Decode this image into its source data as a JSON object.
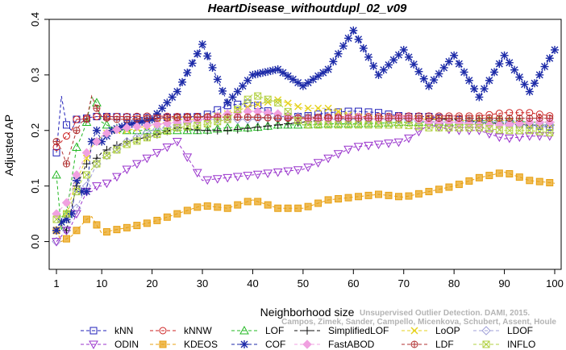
{
  "chart_data": {
    "type": "line",
    "title": "HeartDisease_withoutdupl_02_v09",
    "xlabel": "Neighborhood size",
    "ylabel": "Adjusted AP",
    "xlim": [
      1,
      100
    ],
    "ylim": [
      -0.05,
      0.4
    ],
    "x_ticks": [
      1,
      10,
      20,
      30,
      40,
      50,
      60,
      70,
      80,
      90,
      100
    ],
    "y_ticks": [
      0.0,
      0.1,
      0.2,
      0.3,
      0.4
    ],
    "x_tick_labels": [
      "1",
      "10",
      "20",
      "30",
      "40",
      "50",
      "60",
      "70",
      "80",
      "90",
      "100"
    ],
    "y_tick_labels": [
      "0.0",
      "0.1",
      "0.2",
      "0.3",
      "0.4"
    ],
    "grid": false,
    "legend_position": "bottom",
    "watermark": [
      "Unsupervised Outlier Detection. DAMI, 2015.",
      "Campos, Zimek, Sander, Campello, Micenkova, Schubert, Assent, Houle"
    ],
    "x_knots": [
      1,
      2,
      3,
      4,
      5,
      6,
      7,
      8,
      9,
      10,
      12,
      15,
      20,
      25,
      30,
      35,
      40,
      45,
      50,
      55,
      60,
      65,
      70,
      75,
      80,
      85,
      90,
      95,
      100
    ],
    "series": [
      {
        "name": "kNN",
        "color": "#1f1fb8",
        "marker": "square",
        "values": [
          0.16,
          0.262,
          0.21,
          0.2,
          0.22,
          0.22,
          0.222,
          0.224,
          0.225,
          0.225,
          0.225,
          0.224,
          0.223,
          0.224,
          0.225,
          0.245,
          0.25,
          0.225,
          0.225,
          0.232,
          0.235,
          0.232,
          0.225,
          0.225,
          0.22,
          0.215,
          0.215,
          0.21,
          0.205
        ]
      },
      {
        "name": "kNNW",
        "color": "#cc2020",
        "marker": "circle",
        "values": [
          0.17,
          0.18,
          0.19,
          0.2,
          0.22,
          0.22,
          0.222,
          0.223,
          0.225,
          0.225,
          0.225,
          0.225,
          0.226,
          0.225,
          0.225,
          0.224,
          0.224,
          0.222,
          0.224,
          0.224,
          0.225,
          0.225,
          0.226,
          0.226,
          0.226,
          0.226,
          0.232,
          0.232,
          0.225
        ]
      },
      {
        "name": "LOF",
        "color": "#22b822",
        "marker": "triangle",
        "values": [
          0.12,
          0.02,
          0.05,
          0.11,
          0.17,
          0.19,
          0.215,
          0.26,
          0.25,
          0.215,
          0.205,
          0.2,
          0.2,
          0.2,
          0.2,
          0.205,
          0.205,
          0.21,
          0.21,
          0.212,
          0.212,
          0.213,
          0.215,
          0.215,
          0.215,
          0.218,
          0.218,
          0.215,
          0.215
        ]
      },
      {
        "name": "SimplifiedLOF",
        "color": "#111111",
        "marker": "plus",
        "values": [
          0.02,
          0.03,
          0.02,
          0.06,
          0.1,
          0.12,
          0.14,
          0.14,
          0.15,
          0.16,
          0.17,
          0.18,
          0.19,
          0.205,
          0.2,
          0.2,
          0.205,
          0.21,
          0.215,
          0.22,
          0.22,
          0.22,
          0.22,
          0.22,
          0.22,
          0.215,
          0.212,
          0.21,
          0.21
        ]
      },
      {
        "name": "LoOP",
        "color": "#e6d21e",
        "marker": "x",
        "values": [
          0.02,
          0.03,
          0.05,
          0.08,
          0.11,
          0.13,
          0.15,
          0.17,
          0.18,
          0.19,
          0.2,
          0.2,
          0.21,
          0.22,
          0.22,
          0.23,
          0.245,
          0.255,
          0.24,
          0.24,
          0.225,
          0.22,
          0.22,
          0.22,
          0.218,
          0.218,
          0.218,
          0.21,
          0.21
        ]
      },
      {
        "name": "LDOF",
        "color": "#a0a0d8",
        "marker": "diamond",
        "values": [
          0.0,
          0.01,
          0.02,
          0.04,
          0.06,
          0.08,
          0.1,
          0.12,
          0.14,
          0.15,
          0.16,
          0.18,
          0.2,
          0.21,
          0.22,
          0.22,
          0.22,
          0.225,
          0.225,
          0.22,
          0.22,
          0.22,
          0.22,
          0.215,
          0.215,
          0.215,
          0.215,
          0.21,
          0.21
        ]
      },
      {
        "name": "ODIN",
        "color": "#9933cc",
        "marker": "triangle-down",
        "values": [
          0.0,
          0.01,
          0.02,
          0.03,
          0.05,
          0.07,
          0.09,
          0.09,
          0.1,
          0.1,
          0.11,
          0.13,
          0.155,
          0.18,
          0.11,
          0.115,
          0.12,
          0.125,
          0.13,
          0.15,
          0.17,
          0.175,
          0.18,
          0.21,
          0.2,
          0.2,
          0.185,
          0.19,
          0.19
        ]
      },
      {
        "name": "KDEOS",
        "color": "#e8a010",
        "marker": "square-x",
        "values": [
          0.02,
          0.0,
          0.005,
          0.01,
          0.02,
          0.03,
          0.04,
          0.045,
          0.03,
          0.015,
          0.02,
          0.025,
          0.035,
          0.05,
          0.065,
          0.06,
          0.075,
          0.06,
          0.06,
          0.075,
          0.08,
          0.085,
          0.08,
          0.09,
          0.1,
          0.115,
          0.125,
          0.11,
          0.105
        ]
      },
      {
        "name": "COF",
        "color": "#1c2aa8",
        "marker": "asterisk",
        "values": [
          0.02,
          0.035,
          0.04,
          0.05,
          0.11,
          0.09,
          0.09,
          0.18,
          0.2,
          0.18,
          0.2,
          0.21,
          0.22,
          0.27,
          0.355,
          0.25,
          0.3,
          0.31,
          0.28,
          0.31,
          0.38,
          0.3,
          0.345,
          0.28,
          0.335,
          0.26,
          0.335,
          0.27,
          0.345
        ]
      },
      {
        "name": "FastABOD",
        "color": "#f0a0e0",
        "marker": "diamond-filled",
        "values": [
          0.05,
          0.06,
          0.07,
          0.09,
          0.12,
          0.14,
          0.16,
          0.17,
          0.18,
          0.19,
          0.2,
          0.205,
          0.21,
          0.215,
          0.22,
          0.23,
          0.235,
          0.23,
          0.22,
          0.22,
          0.225,
          0.22,
          0.225,
          0.215,
          0.215,
          0.21,
          0.21,
          0.215,
          0.215
        ]
      },
      {
        "name": "LDF",
        "color": "#b03030",
        "marker": "circle-plus",
        "values": [
          0.18,
          0.165,
          0.14,
          0.17,
          0.2,
          0.215,
          0.22,
          0.262,
          0.24,
          0.225,
          0.22,
          0.22,
          0.222,
          0.223,
          0.224,
          0.224,
          0.224,
          0.222,
          0.222,
          0.222,
          0.222,
          0.222,
          0.222,
          0.222,
          0.222,
          0.222,
          0.222,
          0.222,
          0.222
        ]
      },
      {
        "name": "INFLO",
        "color": "#b0d040",
        "marker": "star-box",
        "values": [
          0.04,
          0.045,
          0.05,
          0.07,
          0.09,
          0.11,
          0.12,
          0.13,
          0.14,
          0.15,
          0.16,
          0.175,
          0.19,
          0.205,
          0.21,
          0.22,
          0.265,
          0.25,
          0.21,
          0.21,
          0.21,
          0.21,
          0.21,
          0.205,
          0.205,
          0.205,
          0.2,
          0.2,
          0.195
        ]
      }
    ]
  }
}
